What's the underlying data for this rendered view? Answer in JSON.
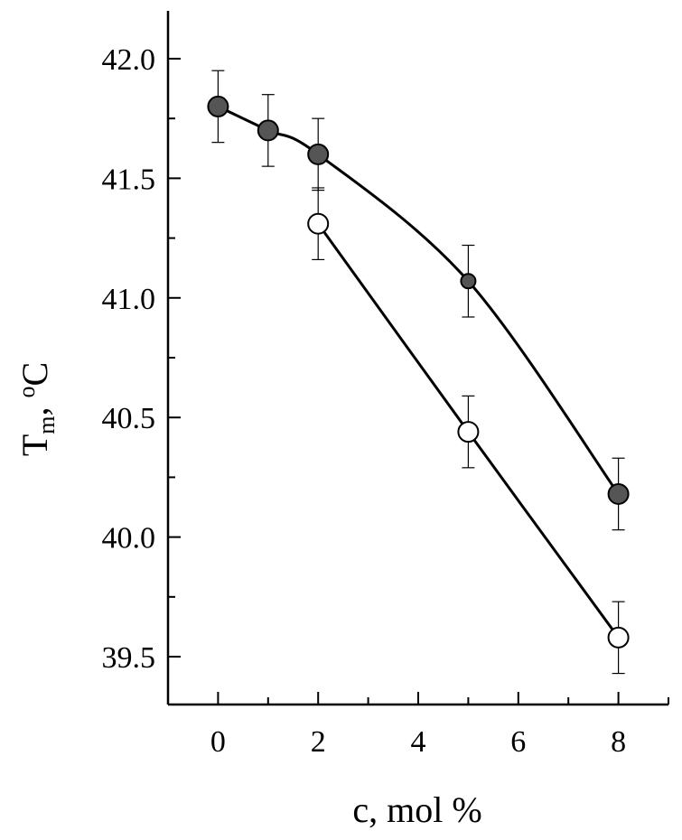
{
  "chart_data": {
    "type": "scatter",
    "title": "",
    "xlabel": "c, mol %",
    "ylabel": {
      "base": "T",
      "subscript": "m",
      "sep": ", ",
      "superscript": "o",
      "unit": "C"
    },
    "xlim": [
      -1,
      9
    ],
    "ylim": [
      39.3,
      42.2
    ],
    "x_ticks": [
      0,
      2,
      4,
      6,
      8
    ],
    "x_tick_labels": [
      "0",
      "2",
      "4",
      "6",
      "8"
    ],
    "y_ticks": [
      39.5,
      40.0,
      40.5,
      41.0,
      41.5,
      42.0
    ],
    "y_tick_labels": [
      "39.5",
      "40.0",
      "40.5",
      "41.0",
      "41.5",
      "42.0"
    ],
    "grid": false,
    "series": [
      {
        "marker": "filled-circle",
        "color": "#555555",
        "points": [
          {
            "x": 0,
            "y": 41.8,
            "err": 0.15
          },
          {
            "x": 1,
            "y": 41.7,
            "err": 0.15
          },
          {
            "x": 2,
            "y": 41.6,
            "err": 0.15
          },
          {
            "x": 5,
            "y": 41.07,
            "err": 0.15,
            "small": true
          },
          {
            "x": 8,
            "y": 40.18,
            "err": 0.15
          }
        ]
      },
      {
        "marker": "open-circle",
        "color": "#ffffff",
        "points": [
          {
            "x": 2,
            "y": 41.31,
            "err": 0.15
          },
          {
            "x": 5,
            "y": 40.44,
            "err": 0.15
          },
          {
            "x": 8,
            "y": 39.58,
            "err": 0.15
          }
        ]
      }
    ]
  }
}
